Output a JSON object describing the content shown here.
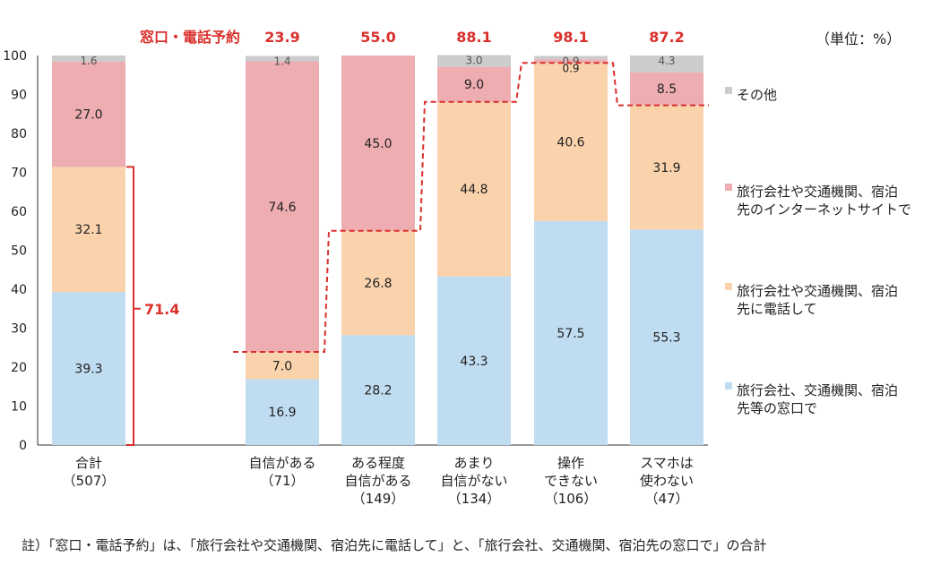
{
  "unit_label": "（単位：%）",
  "footnote": "註）「窓口・電話予約」は、「旅行会社や交通機関、宿泊先に電話して」と、「旅行会社、交通機関、宿泊先の窓口で」の合計",
  "reservation_label": "窓口・電話予約",
  "bracket_label": "71.4",
  "colors": {
    "counter": "#bfdcf0",
    "phone": "#fad3ad",
    "internet": "#eeadb1",
    "other": "#cccccc",
    "accent": "#d9302b"
  },
  "chart_data": {
    "type": "bar",
    "stacked": true,
    "ylim": [
      0,
      100
    ],
    "yticks": [
      0,
      10,
      20,
      30,
      40,
      50,
      60,
      70,
      80,
      90,
      100
    ],
    "categories": [
      [
        "合計",
        "（507）"
      ],
      [
        "自信がある",
        "（71）"
      ],
      [
        "ある程度",
        "自信がある",
        "（149）"
      ],
      [
        "あまり",
        "自信がない",
        "（134）"
      ],
      [
        "操作",
        "できない",
        "（106）"
      ],
      [
        "スマホは",
        "使わない",
        "（47）"
      ]
    ],
    "series": [
      {
        "name": "旅行会社、交通機関、宿泊先等の窓口で",
        "legend_lines": [
          "旅行会社、交通機関、宿泊",
          "先等の窓口で"
        ],
        "color_key": "counter",
        "values": [
          39.3,
          16.9,
          28.2,
          43.3,
          57.5,
          55.3
        ]
      },
      {
        "name": "旅行会社や交通機関、宿泊先に電話して",
        "legend_lines": [
          "旅行会社や交通機関、宿泊",
          "先に電話して"
        ],
        "color_key": "phone",
        "values": [
          32.1,
          7.0,
          26.8,
          44.8,
          40.6,
          31.9
        ]
      },
      {
        "name": "旅行会社や交通機関、宿泊先のインターネットサイトで",
        "legend_lines": [
          "旅行会社や交通機関、宿泊",
          "先のインターネットサイトで"
        ],
        "color_key": "internet",
        "values": [
          27.0,
          74.6,
          45.0,
          9.0,
          0.9,
          8.5
        ]
      },
      {
        "name": "その他",
        "legend_lines": [
          "その他"
        ],
        "color_key": "other",
        "values": [
          1.6,
          1.4,
          0,
          3.0,
          0.9,
          4.3
        ]
      }
    ],
    "data_labels": [
      [
        "39.3",
        "32.1",
        "27.0",
        "1.6"
      ],
      [
        "16.9",
        "7.0",
        "74.6",
        "1.4"
      ],
      [
        "28.2",
        "26.8",
        "45.0",
        ""
      ],
      [
        "43.3",
        "44.8",
        "9.0",
        "3.0"
      ],
      [
        "57.5",
        "40.6",
        "0.9",
        "0.9"
      ],
      [
        "55.3",
        "31.9",
        "8.5",
        "4.3"
      ]
    ],
    "reservation_totals": [
      "23.9",
      "55.0",
      "88.1",
      "98.1",
      "87.2"
    ]
  }
}
